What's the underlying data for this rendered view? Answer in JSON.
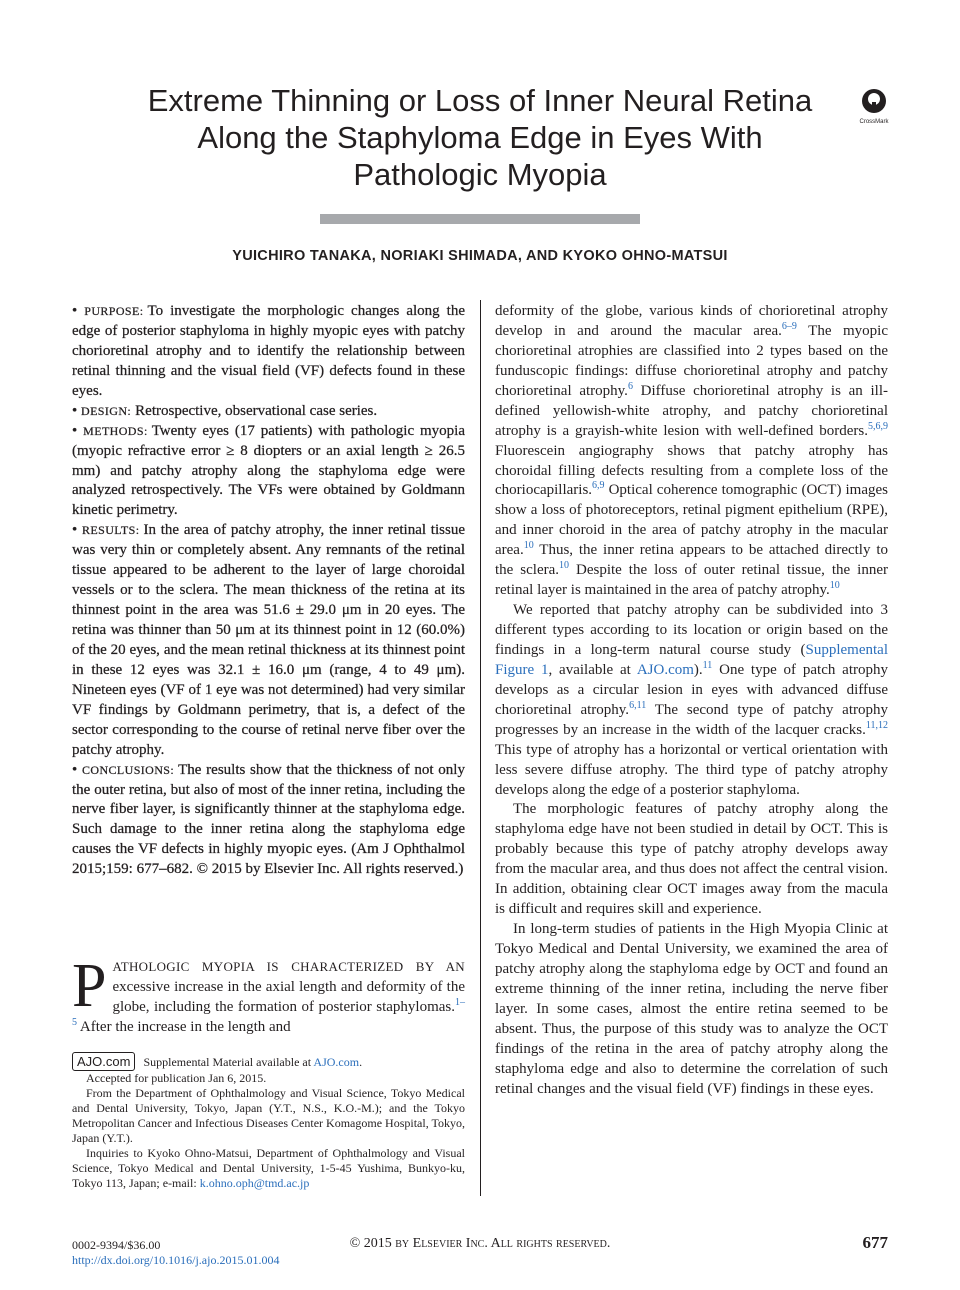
{
  "header": {
    "title_lines": [
      "Extreme Thinning or Loss of Inner Neural Retina",
      "Along the Staphyloma Edge in Eyes With",
      "Pathologic Myopia"
    ],
    "crossmark": "CrossMark",
    "authors": "YUICHIRO TANAKA, NORIAKI SHIMADA, AND KYOKO OHNO-MATSUI"
  },
  "abstract": [
    {
      "label": "PURPOSE:",
      "text": "To investigate the morphologic changes along the edge of posterior staphyloma in highly myopic eyes with patchy chorioretinal atrophy and to identify the relationship between retinal thinning and the visual field (VF) defects found in these eyes."
    },
    {
      "label": "DESIGN:",
      "text": "Retrospective, observational case series."
    },
    {
      "label": "METHODS:",
      "text": "Twenty eyes (17 patients) with pathologic myopia (myopic refractive error ≥ 8 diopters or an axial length ≥ 26.5 mm) and patchy atrophy along the staphyloma edge were analyzed retrospectively. The VFs were obtained by Goldmann kinetic perimetry."
    },
    {
      "label": "RESULTS:",
      "text": "In the area of patchy atrophy, the inner retinal tissue was very thin or completely absent. Any remnants of the retinal tissue appeared to be adherent to the layer of large choroidal vessels or to the sclera. The mean thickness of the retina at its thinnest point in the area was 51.6 ± 29.0 μm in 20 eyes. The retina was thinner than 50 μm at its thinnest point in 12 (60.0%) of the 20 eyes, and the mean retinal thickness at its thinnest point in these 12 eyes was 32.1 ± 16.0 μm (range, 4 to 49 μm). Nineteen eyes (VF of 1 eye was not determined) had very similar VF findings by Goldmann perimetry, that is, a defect of the sector corresponding to the course of retinal nerve fiber over the patchy atrophy."
    },
    {
      "label": "CONCLUSIONS:",
      "text": "The results show that the thickness of not only the outer retina, but also of most of the inner retina, including the nerve fiber layer, is significantly thinner at the staphyloma edge. Such damage to the inner retina along the staphyloma edge causes the VF defects in highly myopic eyes.",
      "citation": "(Am J Ophthalmol 2015;159: 677–682. © 2015 by Elsevier Inc. All rights reserved.)"
    }
  ],
  "intro": {
    "drop_cap": "P",
    "lead": "ATHOLOGIC MYOPIA IS CHARACTERIZED BY AN",
    "runs": [
      " excessive increase in the axial length and deformity of the globe, including the formation of posterior staphylomas.",
      {
        "sup": "1–5"
      },
      " After the increase in the length and"
    ]
  },
  "footnotes": {
    "logo": "AJO.com",
    "supplemental": [
      "Supplemental Material available at ",
      {
        "link": "AJO.com"
      },
      "."
    ],
    "accepted": "Accepted for publication Jan 6, 2015.",
    "affiliation": "From the Department of Ophthalmology and Visual Science, Tokyo Medical and Dental University, Tokyo, Japan (Y.T., N.S., K.O.-M.); and the Tokyo Metropolitan Cancer and Infectious Diseases Center Komagome Hospital, Tokyo, Japan (Y.T.).",
    "inquiries": [
      "Inquiries to Kyoko Ohno-Matsui, Department of Ophthalmology and Visual Science, Tokyo Medical and Dental University, 1-5-45 Yushima, Bunkyo-ku, Tokyo 113, Japan; e-mail: ",
      {
        "link": "k.ohno.oph@tmd.ac.jp"
      }
    ]
  },
  "right_column": [
    {
      "runs": [
        "deformity of the globe, various kinds of chorioretinal atrophy develop in and around the macular area.",
        {
          "sup": "6–9"
        },
        " The myopic chorioretinal atrophies are classified into 2 types based on the funduscopic findings: diffuse chorioretinal atrophy and patchy chorioretinal atrophy.",
        {
          "sup": "6"
        },
        " Diffuse chorioretinal atrophy is an ill-defined yellowish-white atrophy, and patchy chorioretinal atrophy is a grayish-white lesion with well-defined borders.",
        {
          "sup": "5,6,9"
        },
        " Fluorescein angiography shows that patchy atrophy has choroidal filling defects resulting from a complete loss of the choriocapillaris.",
        {
          "sup": "6,9"
        },
        " Optical coherence tomographic (OCT) images show a loss of photoreceptors, retinal pigment epithelium (RPE), and inner choroid in the area of patchy atrophy in the macular area.",
        {
          "sup": "10"
        },
        " Thus, the inner retina appears to be attached directly to the sclera.",
        {
          "sup": "10"
        },
        " Despite the loss of outer retinal tissue, the inner retinal layer is maintained in the area of patchy atrophy.",
        {
          "sup": "10"
        }
      ]
    },
    {
      "runs": [
        "We reported that patchy atrophy can be subdivided into 3 different types according to its location or origin based on the findings in a long-term natural course study (",
        {
          "link": "Supplemental Figure 1"
        },
        ", available at ",
        {
          "link": "AJO.com"
        },
        ").",
        {
          "sup": "11"
        },
        " One type of patch atrophy develops as a circular lesion in eyes with advanced diffuse chorioretinal atrophy.",
        {
          "sup": "6,11"
        },
        " The second type of patchy atrophy progresses by an increase in the width of the lacquer cracks.",
        {
          "sup": "11,12"
        },
        " This type of atrophy has a horizontal or vertical orientation with less severe diffuse atrophy. The third type of patchy atrophy develops along the edge of a posterior staphyloma."
      ]
    },
    {
      "runs": [
        "The morphologic features of patchy atrophy along the staphyloma edge have not been studied in detail by OCT. This is probably because this type of patchy atrophy develops away from the macular area, and thus does not affect the central vision. In addition, obtaining clear OCT images away from the macula is difficult and requires skill and experience."
      ]
    },
    {
      "runs": [
        "In long-term studies of patients in the High Myopia Clinic at Tokyo Medical and Dental University, we examined the area of patchy atrophy along the staphyloma edge by OCT and found an extreme thinning of the inner retina, including the nerve fiber layer. In some cases, almost the entire retina seemed to be absent. Thus, the purpose of this study was to analyze the OCT findings of the retina in the area of patchy atrophy along the staphyloma edge and also to determine the correlation of such retinal changes and the visual field (VF) findings in these eyes."
      ]
    }
  ],
  "footer": {
    "issn": "0002-9394/$36.00",
    "doi": "http://dx.doi.org/10.1016/j.ajo.2015.01.004",
    "copyright": "© 2015 by Elsevier Inc. All rights reserved.",
    "page": "677"
  }
}
